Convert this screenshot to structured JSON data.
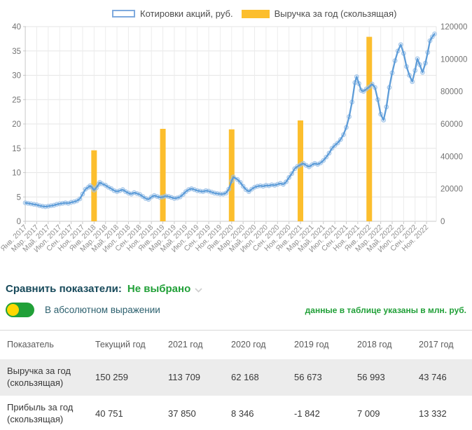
{
  "chart_data": {
    "type": "line+bar",
    "title": "",
    "grid": true,
    "legend_position": "top",
    "x_unit": "month index from Jan 2017, ticks every 2 months",
    "x_tick_labels": [
      "Янв. 2017",
      "Мар. 2017",
      "Май. 2017",
      "Июл. 2017",
      "Сен. 2017",
      "Ноя. 2017",
      "Янв. 2018",
      "Мар. 2018",
      "Май. 2018",
      "Июл. 2018",
      "Сен. 2018",
      "Ноя. 2018",
      "Янв. 2019",
      "Мар. 2019",
      "Май. 2019",
      "Июл. 2019",
      "Сен. 2019",
      "Ноя. 2019",
      "Янв. 2020",
      "Мар. 2020",
      "Май. 2020",
      "Июл. 2020",
      "Сен. 2020",
      "Ноя. 2020",
      "Янв. 2021",
      "Мар. 2021",
      "Май. 2021",
      "Июл. 2021",
      "Сен. 2021",
      "Ноя. 2021",
      "Янв. 2022",
      "Мар. 2022",
      "Май. 2022",
      "Июл. 2022",
      "Сен. 2022",
      "Ноя. 2022"
    ],
    "left_axis": {
      "range": [
        0,
        40
      ],
      "ticks": [
        0,
        5,
        10,
        15,
        20,
        25,
        30,
        35,
        40
      ]
    },
    "right_axis": {
      "range": [
        0,
        120000
      ],
      "ticks": [
        0,
        20000,
        40000,
        60000,
        80000,
        100000,
        120000
      ]
    },
    "series": [
      {
        "name": "Котировки акций, руб.",
        "type": "line",
        "axis": "left",
        "color": "#5d9cd8",
        "marker_color": "#9dc2e8",
        "points": [
          [
            0,
            3.8
          ],
          [
            0.5,
            3.7
          ],
          [
            1,
            3.6
          ],
          [
            1.5,
            3.5
          ],
          [
            2,
            3.4
          ],
          [
            2.5,
            3.2
          ],
          [
            3,
            3.1
          ],
          [
            3.5,
            3.0
          ],
          [
            4,
            3.1
          ],
          [
            4.5,
            3.2
          ],
          [
            5,
            3.3
          ],
          [
            5.5,
            3.5
          ],
          [
            6,
            3.6
          ],
          [
            6.5,
            3.7
          ],
          [
            7,
            3.8
          ],
          [
            7.5,
            3.7
          ],
          [
            8,
            3.9
          ],
          [
            8.5,
            4.0
          ],
          [
            9,
            4.2
          ],
          [
            9.5,
            4.6
          ],
          [
            10,
            5.6
          ],
          [
            10.5,
            6.6
          ],
          [
            11,
            7.0
          ],
          [
            11.3,
            7.3
          ],
          [
            11.6,
            7.0
          ],
          [
            12,
            6.4
          ],
          [
            12.4,
            6.9
          ],
          [
            12.8,
            7.6
          ],
          [
            13,
            8.0
          ],
          [
            13.4,
            7.7
          ],
          [
            14,
            7.4
          ],
          [
            14.5,
            7.0
          ],
          [
            15,
            6.7
          ],
          [
            15.5,
            6.3
          ],
          [
            16,
            6.1
          ],
          [
            16.5,
            6.3
          ],
          [
            17,
            6.5
          ],
          [
            17.5,
            6.1
          ],
          [
            18,
            5.8
          ],
          [
            18.5,
            5.6
          ],
          [
            19,
            5.9
          ],
          [
            19.5,
            5.7
          ],
          [
            20,
            5.5
          ],
          [
            20.5,
            5.1
          ],
          [
            21,
            4.7
          ],
          [
            21.5,
            4.5
          ],
          [
            22,
            5.0
          ],
          [
            22.5,
            5.3
          ],
          [
            23,
            5.1
          ],
          [
            23.5,
            4.9
          ],
          [
            24,
            5.0
          ],
          [
            24.5,
            5.2
          ],
          [
            25,
            5.1
          ],
          [
            25.5,
            4.9
          ],
          [
            26,
            4.7
          ],
          [
            26.5,
            4.8
          ],
          [
            27,
            5.0
          ],
          [
            27.5,
            5.5
          ],
          [
            28,
            6.1
          ],
          [
            28.5,
            6.5
          ],
          [
            29,
            6.7
          ],
          [
            29.5,
            6.5
          ],
          [
            30,
            6.3
          ],
          [
            30.5,
            6.2
          ],
          [
            31,
            6.1
          ],
          [
            31.5,
            6.3
          ],
          [
            32,
            6.2
          ],
          [
            32.5,
            6.0
          ],
          [
            33,
            5.8
          ],
          [
            33.5,
            5.7
          ],
          [
            34,
            5.6
          ],
          [
            34.5,
            5.6
          ],
          [
            35,
            5.8
          ],
          [
            35.5,
            6.6
          ],
          [
            36,
            8.3
          ],
          [
            36.3,
            9.1
          ],
          [
            37,
            8.6
          ],
          [
            37.5,
            8.0
          ],
          [
            38,
            7.2
          ],
          [
            38.5,
            6.5
          ],
          [
            39,
            6.1
          ],
          [
            39.5,
            6.6
          ],
          [
            40,
            7.0
          ],
          [
            40.5,
            7.2
          ],
          [
            41,
            7.3
          ],
          [
            41.5,
            7.2
          ],
          [
            42,
            7.4
          ],
          [
            42.5,
            7.3
          ],
          [
            43,
            7.5
          ],
          [
            43.5,
            7.4
          ],
          [
            44,
            7.6
          ],
          [
            44.5,
            7.8
          ],
          [
            45,
            7.6
          ],
          [
            45.5,
            8.1
          ],
          [
            46,
            9.0
          ],
          [
            46.5,
            9.8
          ],
          [
            47,
            10.8
          ],
          [
            47.5,
            11.3
          ],
          [
            48,
            11.6
          ],
          [
            48.5,
            11.9
          ],
          [
            49,
            11.5
          ],
          [
            49.5,
            11.2
          ],
          [
            50,
            11.6
          ],
          [
            50.5,
            11.9
          ],
          [
            51,
            11.7
          ],
          [
            51.5,
            12.0
          ],
          [
            52,
            12.5
          ],
          [
            52.5,
            13.2
          ],
          [
            53,
            14.0
          ],
          [
            53.5,
            15.0
          ],
          [
            54,
            15.6
          ],
          [
            54.5,
            16.1
          ],
          [
            55,
            16.8
          ],
          [
            55.5,
            17.8
          ],
          [
            56,
            19.3
          ],
          [
            56.5,
            21.5
          ],
          [
            57,
            24.5
          ],
          [
            57.5,
            28.5
          ],
          [
            57.8,
            29.7
          ],
          [
            58.2,
            28.3
          ],
          [
            58.6,
            26.9
          ],
          [
            59,
            26.7
          ],
          [
            59.5,
            27.2
          ],
          [
            60,
            27.6
          ],
          [
            60.5,
            28.2
          ],
          [
            61,
            27.5
          ],
          [
            61.5,
            25.0
          ],
          [
            62,
            22.0
          ],
          [
            62.5,
            20.8
          ],
          [
            63,
            23.5
          ],
          [
            63.5,
            27.5
          ],
          [
            64,
            30.5
          ],
          [
            64.5,
            33.0
          ],
          [
            65,
            35.0
          ],
          [
            65.5,
            36.3
          ],
          [
            66,
            34.5
          ],
          [
            66.5,
            31.8
          ],
          [
            67,
            30.0
          ],
          [
            67.5,
            28.7
          ],
          [
            68,
            31.0
          ],
          [
            68.4,
            33.4
          ],
          [
            68.8,
            32.2
          ],
          [
            69.3,
            30.6
          ],
          [
            69.8,
            32.5
          ],
          [
            70.2,
            34.7
          ],
          [
            70.6,
            37.1
          ],
          [
            71,
            37.9
          ],
          [
            71.4,
            38.5
          ]
        ]
      },
      {
        "name": "Выручка за год (скользящая)",
        "type": "bar",
        "axis": "right",
        "color": "#fcbe2d",
        "points": [
          [
            12,
            43746
          ],
          [
            24,
            56993
          ],
          [
            36,
            56673
          ],
          [
            48,
            62168
          ],
          [
            60,
            113709
          ]
        ]
      }
    ]
  },
  "legend": {
    "series1": "Котировки акций, руб.",
    "series2": "Выручка за год (скользящая)"
  },
  "compare": {
    "label": "Сравнить показатели:",
    "value": "Не выбрано"
  },
  "toggle": {
    "label": "В абсолютном выражении",
    "state": "on",
    "pill_color": "#21a038",
    "knob_color": "#ffd800"
  },
  "note": "данные в таблице указаны в млн. руб.",
  "table": {
    "headers": [
      "Показатель",
      "Текущий год",
      "2021 год",
      "2020 год",
      "2019 год",
      "2018 год",
      "2017 год"
    ],
    "rows": [
      {
        "label": "Выручка за год (скользящая)",
        "values": [
          "150 259",
          "113 709",
          "62 168",
          "56 673",
          "56 993",
          "43 746"
        ]
      },
      {
        "label": "Прибыль за год (скользящая)",
        "values": [
          "40 751",
          "37 850",
          "8 346",
          "-1 842",
          "7 009",
          "13 332"
        ]
      }
    ]
  },
  "colors": {
    "line": "#5d9cd8",
    "bar": "#fcbe2d",
    "brand_green": "#21a038",
    "heading_teal": "#17495a"
  }
}
